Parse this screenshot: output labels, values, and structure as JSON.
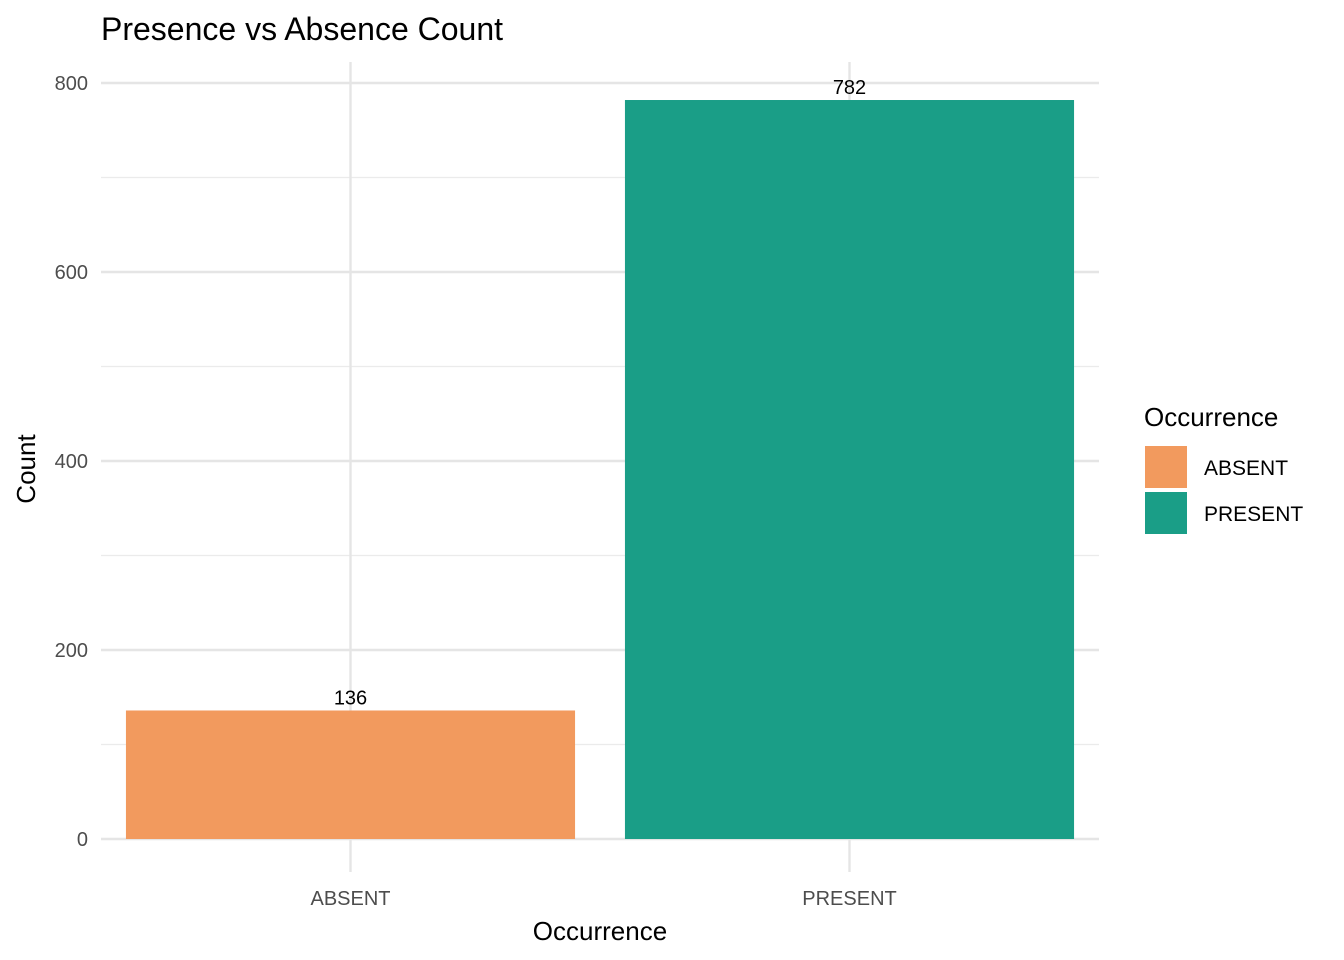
{
  "chart_data": {
    "type": "bar",
    "title": "Presence vs Absence Count",
    "xlabel": "Occurrence",
    "ylabel": "Count",
    "categories": [
      "ABSENT",
      "PRESENT"
    ],
    "values": [
      136,
      782
    ],
    "data_labels": [
      "136",
      "782"
    ],
    "colors": [
      "#F29A5E",
      "#1A9E87"
    ],
    "ylim": [
      0,
      820
    ],
    "yticks": [
      0,
      200,
      400,
      600,
      800
    ],
    "ytick_labels": [
      "0",
      "200",
      "400",
      "600",
      "800"
    ],
    "grid": true,
    "legend": {
      "title": "Occurrence",
      "position": "right",
      "entries": [
        "ABSENT",
        "PRESENT"
      ]
    }
  }
}
